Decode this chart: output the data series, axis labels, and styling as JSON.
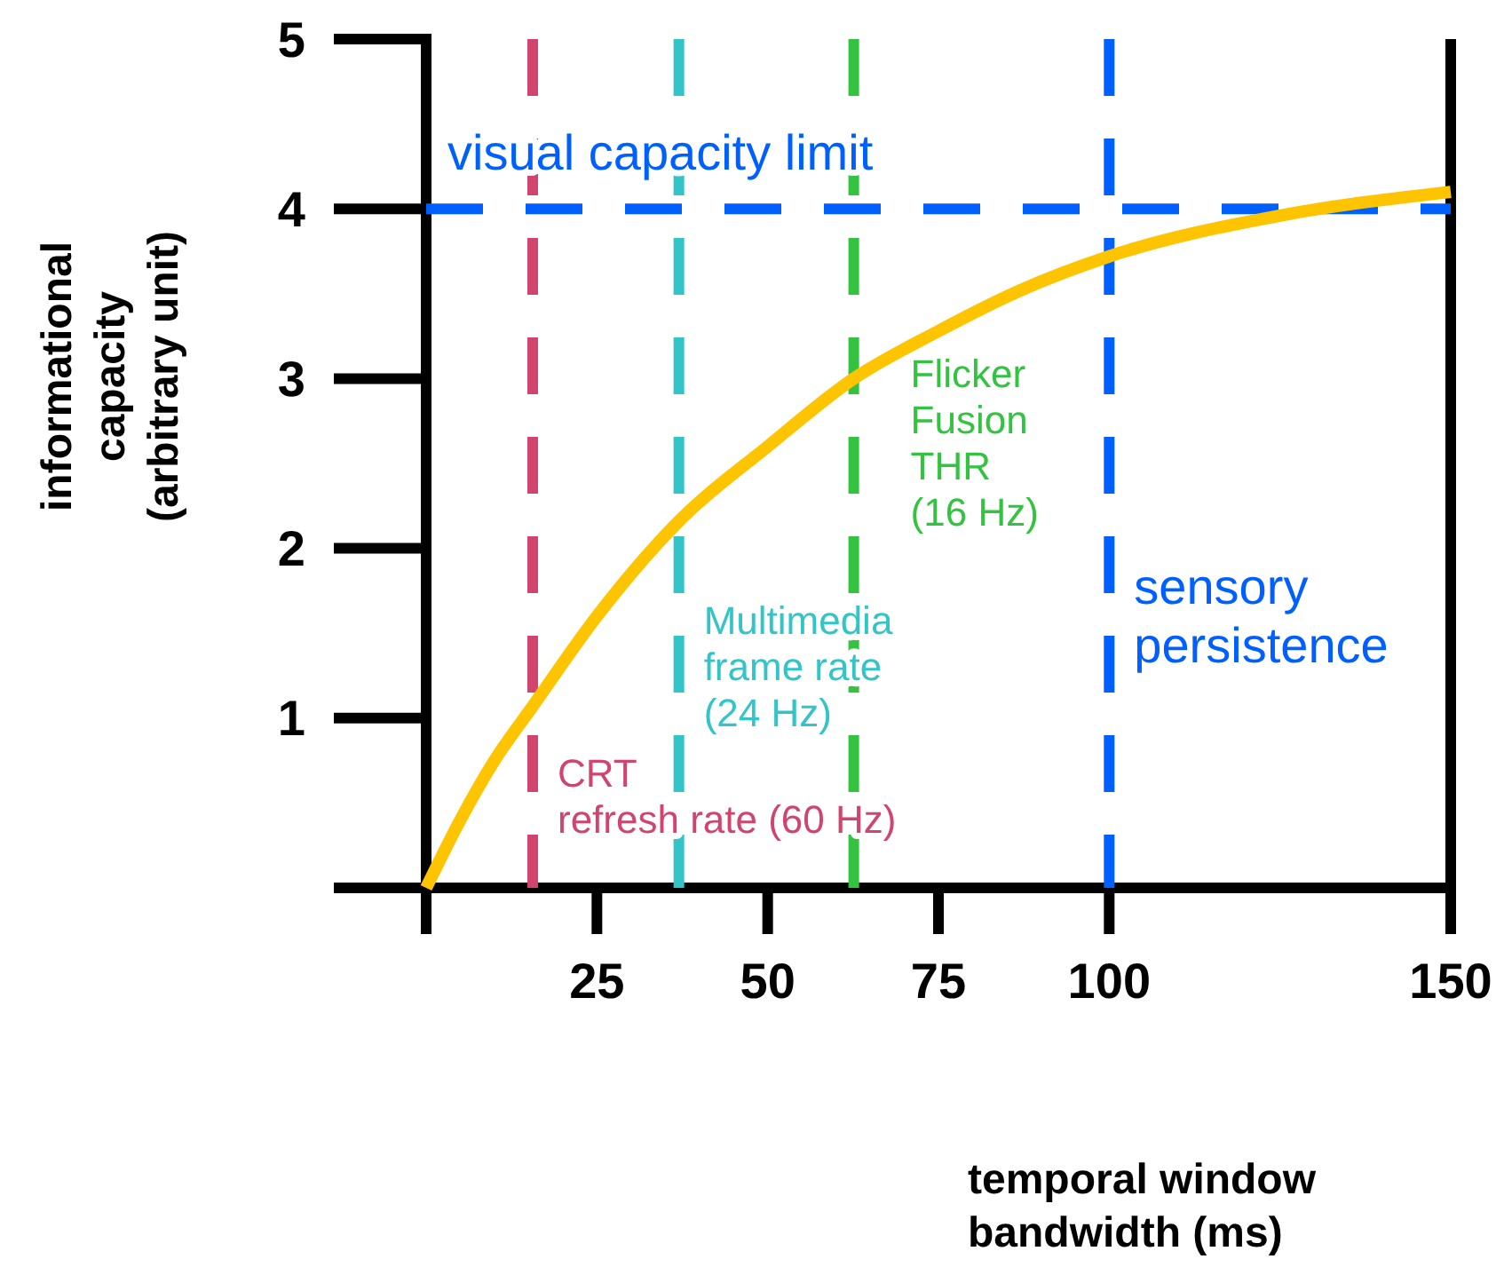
{
  "chart_data": {
    "type": "line",
    "xlabel": "temporal window bandwidth (ms)",
    "ylabel": "informational capacity (arbitrary unit)",
    "xlim": [
      0,
      150
    ],
    "xticks": [
      25,
      50,
      75,
      100,
      150
    ],
    "ylim": [
      0,
      5
    ],
    "yticks": [
      1,
      2,
      3,
      4,
      5
    ],
    "grid": false,
    "marker": "none",
    "line_style": "solid",
    "series": [
      {
        "color": "#ffc400",
        "x": [
          0,
          5,
          10,
          15.6,
          25,
          37,
          50,
          62.6,
          75,
          87,
          100,
          125,
          150
        ],
        "values": [
          0,
          0.4,
          0.75,
          1.07,
          1.6,
          2.16,
          2.6,
          3.0,
          3.28,
          3.52,
          3.72,
          3.96,
          4.1
        ]
      }
    ],
    "ref_lines": [
      {
        "axis": "y",
        "value": 4,
        "label": "visual capacity limit",
        "color": "#0060ff",
        "line_style": "dashed"
      },
      {
        "axis": "x",
        "value": 15.6,
        "label": "CRT refresh rate (60 Hz)",
        "color": "#d0446e",
        "line_style": "dashed"
      },
      {
        "axis": "x",
        "value": 37,
        "label": "Multimedia frame rate (24 Hz)",
        "color": "#33c4c8",
        "line_style": "dashed"
      },
      {
        "axis": "x",
        "value": 62.6,
        "label": "Flicker Fusion THR (16 Hz)",
        "color": "#33c340",
        "line_style": "dashed"
      },
      {
        "axis": "x",
        "value": 100,
        "label": "sensory persistence",
        "color": "#0060ff",
        "line_style": "dashed"
      }
    ]
  }
}
